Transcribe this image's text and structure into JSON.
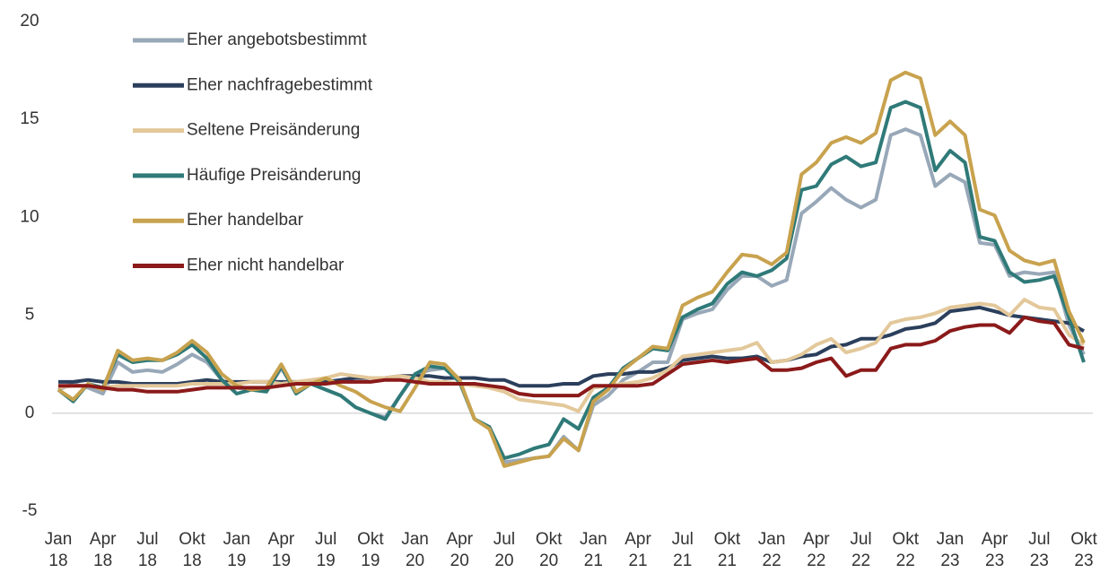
{
  "chart_data": {
    "type": "line",
    "categories": [
      "Jan 18",
      null,
      null,
      "Apr 18",
      null,
      null,
      "Jul 18",
      null,
      null,
      "Okt 18",
      null,
      null,
      "Jan 19",
      null,
      null,
      "Apr 19",
      null,
      null,
      "Jul 19",
      null,
      null,
      "Okt 19",
      null,
      null,
      "Jan 20",
      null,
      null,
      "Apr 20",
      null,
      null,
      "Jul 20",
      null,
      null,
      "Okt 20",
      null,
      null,
      "Jan 21",
      null,
      null,
      "Apr 21",
      null,
      null,
      "Jul 21",
      null,
      null,
      "Okt 21",
      null,
      null,
      "Jan 22",
      null,
      null,
      "Apr 22",
      null,
      null,
      "Jul 22",
      null,
      null,
      "Okt 22",
      null,
      null,
      "Jan 23",
      null,
      null,
      "Apr 23",
      null,
      null,
      "Jul 23",
      null,
      null,
      "Okt 23"
    ],
    "series": [
      {
        "name": "Eher angebotsbestimmt",
        "color": "#98a8b8",
        "values": [
          1.2,
          1.5,
          1.3,
          1.0,
          2.6,
          2.1,
          2.2,
          2.1,
          2.5,
          3.0,
          2.6,
          1.7,
          1.3,
          1.2,
          1.1,
          2.3,
          1.1,
          1.5,
          1.2,
          0.9,
          0.3,
          0.0,
          -0.2,
          0.9,
          2.0,
          2.2,
          2.3,
          1.6,
          -0.3,
          -0.7,
          -2.5,
          -2.4,
          -2.3,
          -2.2,
          -1.2,
          -1.9,
          0.4,
          0.9,
          1.7,
          2.1,
          2.6,
          2.6,
          4.8,
          5.1,
          5.3,
          6.3,
          7.0,
          7.0,
          6.5,
          6.8,
          10.2,
          10.8,
          11.5,
          10.9,
          10.5,
          10.9,
          14.2,
          14.5,
          14.2,
          11.6,
          12.2,
          11.8,
          8.7,
          8.6,
          7.0,
          7.2,
          7.1,
          7.2,
          4.5,
          3.0
        ]
      },
      {
        "name": "Eher nachfragebestimmt",
        "color": "#2b3f5c",
        "values": [
          1.6,
          1.6,
          1.7,
          1.6,
          1.6,
          1.5,
          1.5,
          1.5,
          1.5,
          1.6,
          1.7,
          1.6,
          1.6,
          1.6,
          1.6,
          1.6,
          1.6,
          1.6,
          1.6,
          1.7,
          1.8,
          1.8,
          1.8,
          1.9,
          1.9,
          1.9,
          1.8,
          1.8,
          1.8,
          1.7,
          1.7,
          1.4,
          1.4,
          1.4,
          1.5,
          1.5,
          1.9,
          2.0,
          2.0,
          2.1,
          2.1,
          2.3,
          2.7,
          2.8,
          2.9,
          2.8,
          2.8,
          2.9,
          2.6,
          2.7,
          2.9,
          3.0,
          3.4,
          3.5,
          3.8,
          3.8,
          4.0,
          4.3,
          4.4,
          4.6,
          5.2,
          5.3,
          5.4,
          5.2,
          5.0,
          4.9,
          4.8,
          4.7,
          4.6,
          4.2
        ]
      },
      {
        "name": "Seltene Preisänderung",
        "color": "#e3c89a",
        "values": [
          1.3,
          1.4,
          1.4,
          1.3,
          1.4,
          1.4,
          1.4,
          1.4,
          1.4,
          1.5,
          1.5,
          1.5,
          1.5,
          1.6,
          1.6,
          1.5,
          1.6,
          1.7,
          1.8,
          2.0,
          1.9,
          1.8,
          1.8,
          1.9,
          1.8,
          1.6,
          1.6,
          1.5,
          1.4,
          1.3,
          1.1,
          0.7,
          0.6,
          0.5,
          0.4,
          0.1,
          1.3,
          1.4,
          1.5,
          1.6,
          1.8,
          2.2,
          2.9,
          3.0,
          3.1,
          3.2,
          3.3,
          3.6,
          2.6,
          2.7,
          3.0,
          3.5,
          3.8,
          3.1,
          3.3,
          3.6,
          4.6,
          4.8,
          4.9,
          5.1,
          5.4,
          5.5,
          5.6,
          5.5,
          5.0,
          5.8,
          5.4,
          5.3,
          4.0,
          3.5
        ]
      },
      {
        "name": "Häufige Preisänderung",
        "color": "#2f7a78",
        "values": [
          1.2,
          0.6,
          1.5,
          1.3,
          3.0,
          2.6,
          2.7,
          2.7,
          3.0,
          3.5,
          2.8,
          1.7,
          1.0,
          1.2,
          1.1,
          2.4,
          1.0,
          1.5,
          1.2,
          0.9,
          0.3,
          0.0,
          -0.3,
          0.9,
          2.0,
          2.4,
          2.3,
          1.6,
          -0.3,
          -0.7,
          -2.3,
          -2.1,
          -1.8,
          -1.6,
          -0.3,
          -0.8,
          0.8,
          1.3,
          2.3,
          2.8,
          3.3,
          3.2,
          4.9,
          5.3,
          5.6,
          6.6,
          7.2,
          7.0,
          7.3,
          7.9,
          11.4,
          11.6,
          12.7,
          13.1,
          12.6,
          12.8,
          15.6,
          15.9,
          15.6,
          12.4,
          13.4,
          12.8,
          9.0,
          8.8,
          7.2,
          6.7,
          6.8,
          7.0,
          4.9,
          2.6
        ]
      },
      {
        "name": "Eher handelbar",
        "color": "#c8a24e",
        "values": [
          1.2,
          0.7,
          1.5,
          1.2,
          3.2,
          2.7,
          2.8,
          2.7,
          3.1,
          3.7,
          3.1,
          2.0,
          1.4,
          1.2,
          1.3,
          2.5,
          1.1,
          1.5,
          1.8,
          1.4,
          1.1,
          0.6,
          0.3,
          0.1,
          1.3,
          2.6,
          2.5,
          1.7,
          -0.3,
          -0.8,
          -2.7,
          -2.5,
          -2.3,
          -2.2,
          -1.3,
          -1.9,
          0.6,
          1.2,
          2.2,
          2.8,
          3.4,
          3.3,
          5.5,
          5.9,
          6.2,
          7.2,
          8.1,
          8.0,
          7.6,
          8.2,
          12.2,
          12.8,
          13.8,
          14.1,
          13.8,
          14.3,
          17.0,
          17.4,
          17.1,
          14.2,
          14.9,
          14.2,
          10.4,
          10.1,
          8.3,
          7.8,
          7.6,
          7.8,
          5.2,
          3.6
        ]
      },
      {
        "name": "Eher nicht handelbar",
        "color": "#8b1a1a",
        "values": [
          1.4,
          1.4,
          1.4,
          1.3,
          1.2,
          1.2,
          1.1,
          1.1,
          1.1,
          1.2,
          1.3,
          1.3,
          1.3,
          1.3,
          1.3,
          1.4,
          1.5,
          1.5,
          1.5,
          1.6,
          1.6,
          1.6,
          1.7,
          1.7,
          1.6,
          1.5,
          1.5,
          1.5,
          1.5,
          1.4,
          1.3,
          1.0,
          0.9,
          0.9,
          0.9,
          0.9,
          1.4,
          1.4,
          1.4,
          1.4,
          1.5,
          2.0,
          2.5,
          2.6,
          2.7,
          2.6,
          2.7,
          2.8,
          2.2,
          2.2,
          2.3,
          2.6,
          2.8,
          1.9,
          2.2,
          2.2,
          3.3,
          3.5,
          3.5,
          3.7,
          4.2,
          4.4,
          4.5,
          4.5,
          4.1,
          4.9,
          4.7,
          4.6,
          3.5,
          3.3
        ]
      }
    ],
    "ylim": [
      -5,
      20
    ],
    "yticks": [
      -5,
      0,
      5,
      10,
      15,
      20
    ],
    "grid": false,
    "legend": "upper-left"
  }
}
